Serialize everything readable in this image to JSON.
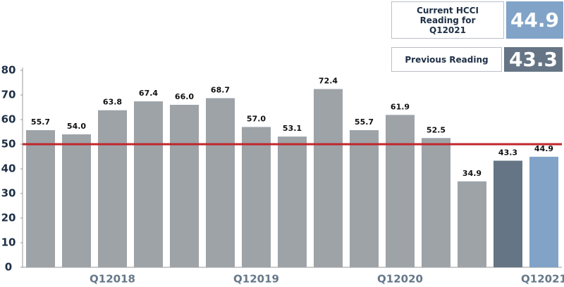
{
  "chart_data": {
    "type": "bar",
    "categories": [
      null,
      null,
      "Q12018",
      null,
      null,
      null,
      "Q12019",
      null,
      null,
      null,
      "Q12020",
      null,
      null,
      null,
      "Q12021"
    ],
    "values": [
      55.7,
      54.0,
      63.8,
      67.4,
      66.0,
      68.7,
      57.0,
      53.1,
      72.4,
      55.7,
      61.9,
      52.5,
      34.9,
      43.3,
      44.9
    ],
    "value_labels": [
      "55.7",
      "54.0",
      "63.8",
      "67.4",
      "66.0",
      "68.7",
      "57.0",
      "53.1",
      "72.4",
      "55.7",
      "61.9",
      "52.5",
      "34.9",
      "43.3",
      "44.9"
    ],
    "colors": [
      "#9ea3a8",
      "#9ea3a8",
      "#9ea3a8",
      "#9ea3a8",
      "#9ea3a8",
      "#9ea3a8",
      "#9ea3a8",
      "#9ea3a8",
      "#9ea3a8",
      "#9ea3a8",
      "#9ea3a8",
      "#9ea3a8",
      "#9ea3a8",
      "#657585",
      "#80a3c7"
    ],
    "ylim": [
      0,
      80
    ],
    "yticks": [
      0,
      10,
      20,
      30,
      40,
      50,
      60,
      70,
      80
    ],
    "reference_line": {
      "value": 50,
      "color": "#c0272d"
    },
    "callouts": [
      {
        "label": "Current HCCI Reading for Q12021",
        "value_label": "44.9",
        "color": "#80a3c7"
      },
      {
        "label": "Previous Reading",
        "value_label": "43.3",
        "color": "#657585"
      }
    ]
  }
}
